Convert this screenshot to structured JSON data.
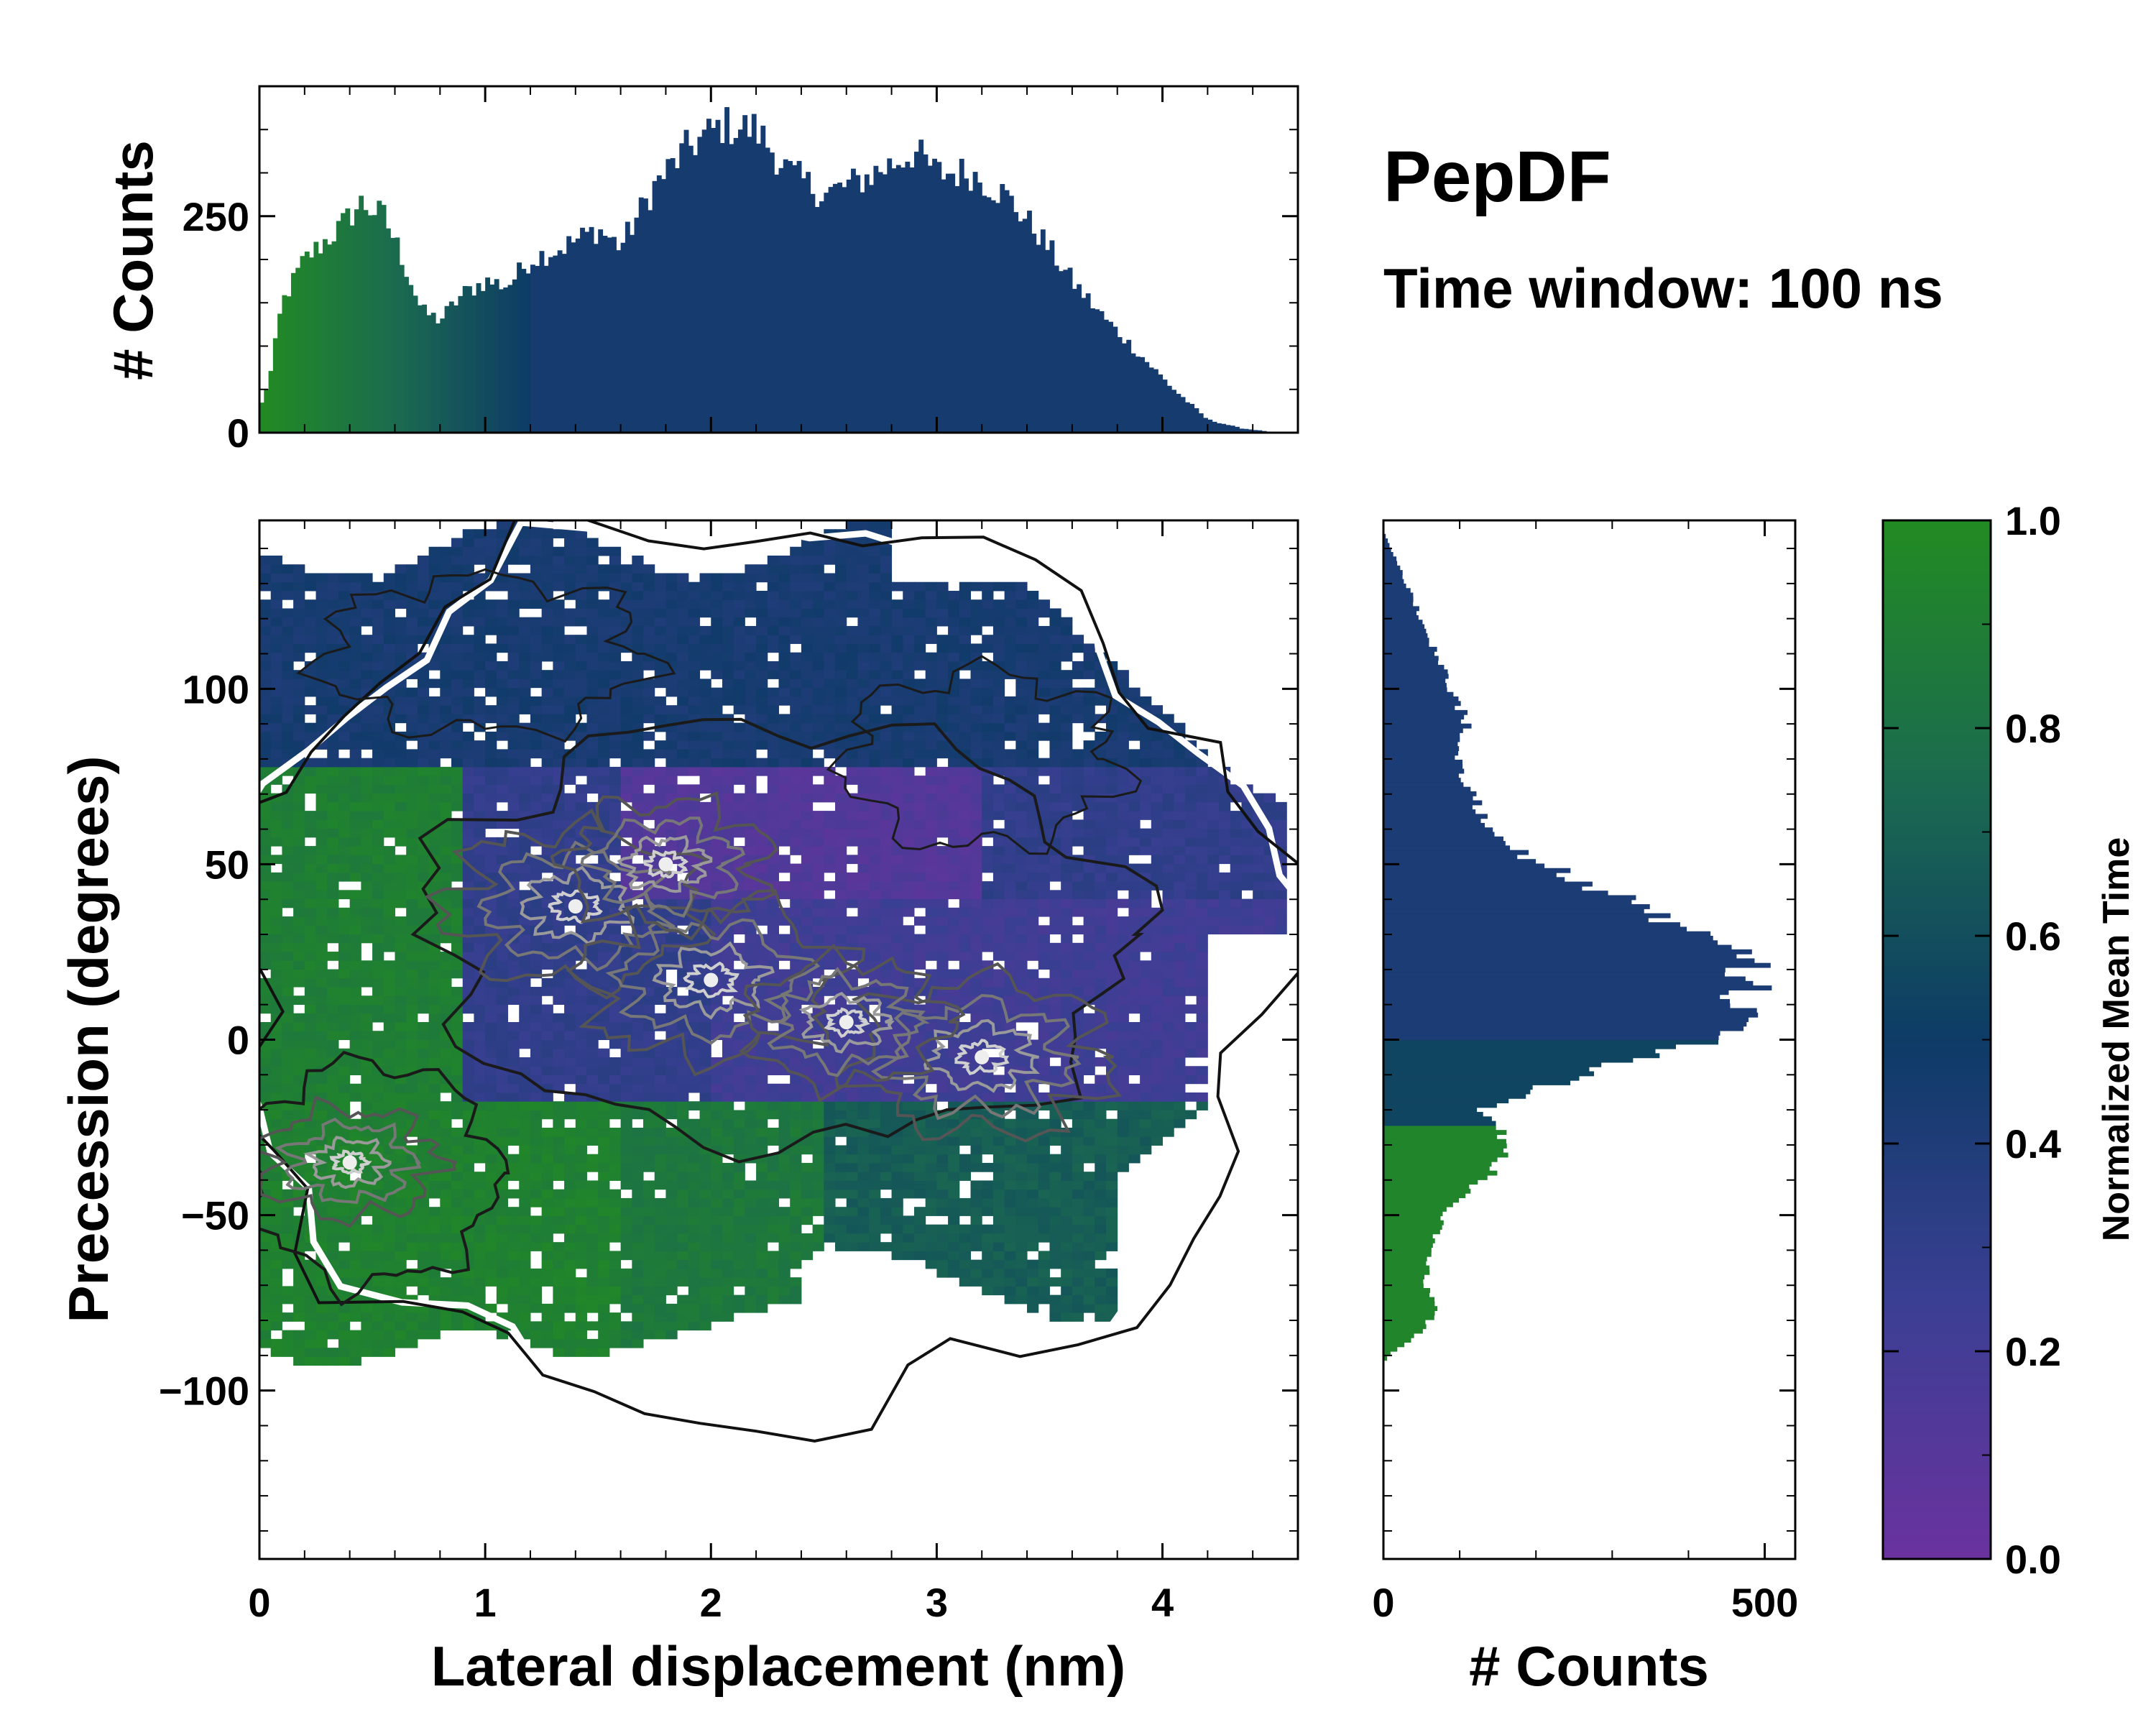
{
  "title": "PepDF",
  "subtitle": "Time window: 100 ns",
  "colors": {
    "low": "#6a329f",
    "mid": "#0d3b66",
    "high": "#228b22"
  },
  "chart_data": [
    {
      "id": "top-histogram",
      "type": "bar",
      "title": "",
      "xlabel": "",
      "ylabel": "# Counts",
      "xlim": [
        0,
        4.6
      ],
      "ylim": [
        0,
        400
      ],
      "yticks": [
        0,
        250
      ],
      "anchors_x": [
        0.0,
        0.05,
        0.1,
        0.2,
        0.35,
        0.45,
        0.55,
        0.62,
        0.72,
        0.8,
        0.9,
        1.0,
        1.1,
        1.2,
        1.35,
        1.5,
        1.6,
        1.75,
        1.9,
        2.05,
        2.2,
        2.35,
        2.5,
        2.65,
        2.8,
        2.9,
        3.0,
        3.15,
        3.3,
        3.45,
        3.6,
        3.75,
        3.9,
        4.05,
        4.2,
        4.35,
        4.45,
        4.5,
        4.55
      ],
      "anchors_y": [
        25,
        70,
        150,
        200,
        235,
        265,
        250,
        210,
        140,
        130,
        160,
        175,
        170,
        200,
        215,
        235,
        215,
        285,
        330,
        355,
        350,
        300,
        275,
        290,
        310,
        325,
        300,
        300,
        275,
        230,
        175,
        130,
        90,
        50,
        15,
        5,
        2,
        0,
        0
      ]
    },
    {
      "id": "right-histogram",
      "type": "bar",
      "orientation": "horizontal",
      "xlabel": "# Counts",
      "ylabel": "",
      "xlim": [
        0,
        540
      ],
      "ylim": [
        -148,
        148
      ],
      "xticks": [
        0,
        500
      ],
      "anchors_y": [
        -90,
        -85,
        -78,
        -70,
        -60,
        -50,
        -42,
        -35,
        -28,
        -20,
        -12,
        -5,
        0,
        5,
        10,
        18,
        25,
        30,
        38,
        45,
        52,
        58,
        65,
        72,
        80,
        90,
        100,
        110,
        120,
        130,
        140,
        145
      ],
      "anchors_x": [
        5,
        40,
        70,
        55,
        60,
        80,
        120,
        155,
        160,
        130,
        230,
        330,
        420,
        480,
        470,
        490,
        450,
        400,
        340,
        260,
        190,
        140,
        130,
        110,
        100,
        110,
        90,
        70,
        50,
        30,
        10,
        0
      ]
    },
    {
      "id": "main-heatmap",
      "type": "heatmap",
      "xlabel": "Lateral displacement (nm)",
      "ylabel": "Precession (degrees)",
      "xlim": [
        0,
        4.6
      ],
      "ylim": [
        -148,
        148
      ],
      "xticks": [
        0,
        1,
        2,
        3,
        4
      ],
      "yticks": [
        -100,
        -50,
        0,
        50,
        100
      ],
      "density_centers": [
        {
          "x": 1.4,
          "y": 38,
          "weight": 1.0
        },
        {
          "x": 2.0,
          "y": 17,
          "weight": 1.0
        },
        {
          "x": 3.2,
          "y": -5,
          "weight": 1.0
        },
        {
          "x": 1.8,
          "y": 50,
          "weight": 0.8
        },
        {
          "x": 0.4,
          "y": -35,
          "weight": 0.7
        },
        {
          "x": 2.6,
          "y": 5,
          "weight": 0.8
        }
      ]
    },
    {
      "id": "colorbar",
      "type": "colorbar",
      "label": "Normalized Mean Time",
      "range": [
        0.0,
        1.0
      ],
      "ticks": [
        "0.0",
        "0.2",
        "0.4",
        "0.6",
        "0.8",
        "1.0"
      ]
    }
  ]
}
